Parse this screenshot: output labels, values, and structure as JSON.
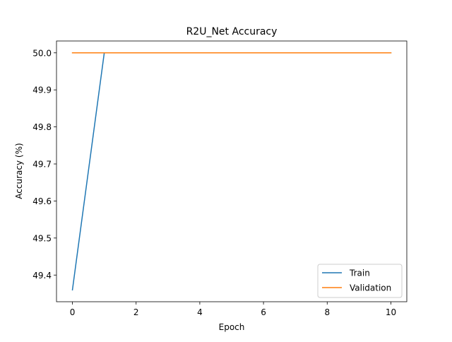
{
  "chart_data": {
    "type": "line",
    "title": "R2U_Net Accuracy",
    "xlabel": "Epoch",
    "ylabel": "Accuracy (%)",
    "xlim": [
      -0.5,
      10.5
    ],
    "ylim": [
      49.328,
      50.032
    ],
    "xticks": [
      0,
      2,
      4,
      6,
      8,
      10
    ],
    "yticks": [
      49.4,
      49.5,
      49.6,
      49.7,
      49.8,
      49.9,
      50.0
    ],
    "xtick_labels": [
      "0",
      "2",
      "4",
      "6",
      "8",
      "10"
    ],
    "ytick_labels": [
      "49.4",
      "49.5",
      "49.6",
      "49.7",
      "49.8",
      "49.9",
      "50.0"
    ],
    "grid": false,
    "legend_position": "lower-right",
    "x": [
      0,
      1,
      2,
      3,
      4,
      5,
      6,
      7,
      8,
      9,
      10
    ],
    "series": [
      {
        "name": "Train",
        "color": "#1f77b4",
        "values": [
          49.36,
          50.0,
          50.0,
          50.0,
          50.0,
          50.0,
          50.0,
          50.0,
          50.0,
          50.0,
          50.0
        ]
      },
      {
        "name": "Validation",
        "color": "#ff7f0e",
        "values": [
          50.0,
          50.0,
          50.0,
          50.0,
          50.0,
          50.0,
          50.0,
          50.0,
          50.0,
          50.0,
          50.0
        ]
      }
    ]
  }
}
